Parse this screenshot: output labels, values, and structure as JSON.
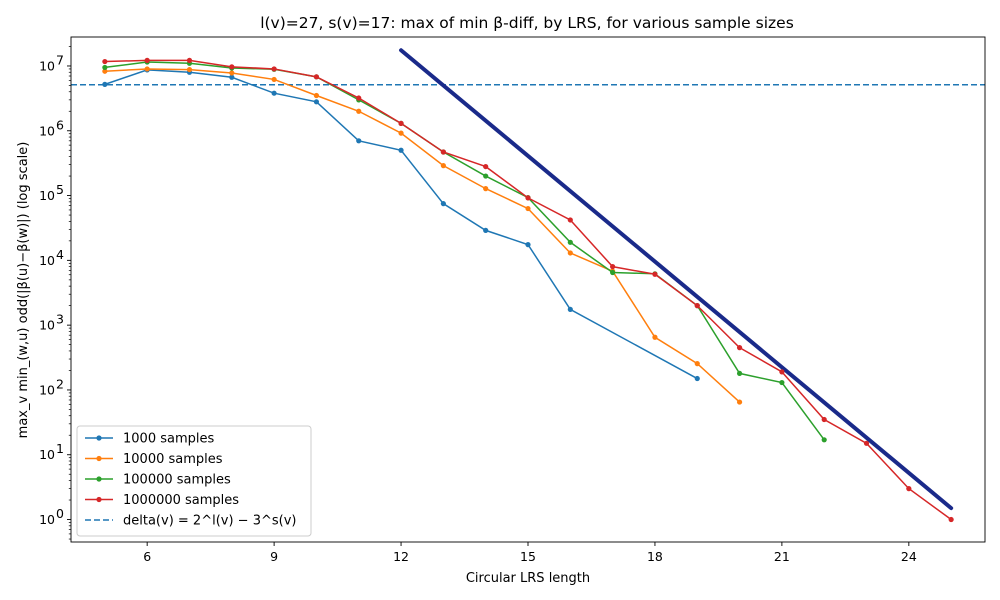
{
  "chart_data": {
    "type": "line",
    "title": "l(v)=27, s(v)=17: max of min β-diff, by LRS, for various sample sizes",
    "xlabel": "Circular LRS length",
    "ylabel": "max_v min_(w,u) odd(|β(u)−β(w)|)  (log scale)",
    "xlim": [
      4.2,
      25.8
    ],
    "ylim": [
      0.45,
      28000000
    ],
    "yscale": "log",
    "x_ticks": [
      6,
      9,
      12,
      15,
      18,
      21,
      24
    ],
    "x_tick_labels": [
      "6",
      "9",
      "12",
      "15",
      "18",
      "21",
      "24"
    ],
    "y_ticks": [
      1,
      10,
      100,
      1000,
      10000,
      100000,
      1000000,
      10000000
    ],
    "y_tick_bases": [
      "10",
      "10",
      "10",
      "10",
      "10",
      "10",
      "10",
      "10"
    ],
    "y_tick_exps": [
      "0",
      "1",
      "2",
      "3",
      "4",
      "5",
      "6",
      "7"
    ],
    "legend_position": "lower-left",
    "series": [
      {
        "name": "1000 samples",
        "color": "#1f77b4",
        "x": [
          5,
          6,
          7,
          8,
          9,
          10,
          11,
          12,
          13,
          14,
          15,
          16,
          19
        ],
        "y": [
          5200000,
          8700000,
          8000000,
          6700000,
          3800000,
          2800000,
          700000,
          500000,
          75000,
          29000,
          17500,
          1750,
          150
        ]
      },
      {
        "name": "10000 samples",
        "color": "#ff7f0e",
        "x": [
          5,
          6,
          7,
          8,
          9,
          10,
          11,
          12,
          13,
          14,
          15,
          16,
          17,
          18,
          19,
          20
        ],
        "y": [
          8300000,
          9000000,
          8800000,
          7800000,
          6200000,
          3500000,
          2000000,
          920000,
          290000,
          128000,
          63000,
          13000,
          6800,
          650,
          255,
          65
        ]
      },
      {
        "name": "100000 samples",
        "color": "#2ca02c",
        "x": [
          5,
          6,
          7,
          8,
          9,
          10,
          11,
          12,
          13,
          14,
          15,
          16,
          17,
          18,
          19,
          20,
          21,
          22
        ],
        "y": [
          9500000,
          11500000,
          11000000,
          9300000,
          8900000,
          6800000,
          3000000,
          1300000,
          470000,
          200000,
          93000,
          19000,
          6500,
          6200,
          2000,
          180,
          130,
          17
        ]
      },
      {
        "name": "1000000 samples",
        "color": "#d62728",
        "x": [
          5,
          6,
          7,
          8,
          9,
          10,
          11,
          12,
          13,
          14,
          15,
          16,
          17,
          18,
          19,
          20,
          21,
          22,
          23,
          24,
          25
        ],
        "y": [
          11700000,
          12200000,
          12200000,
          9700000,
          9000000,
          6800000,
          3200000,
          1300000,
          470000,
          280000,
          92000,
          42000,
          8000,
          6100,
          2000,
          450,
          190,
          35,
          15,
          3,
          1
        ]
      }
    ],
    "reference_line": {
      "name": "delta(v) = 2^l(v) − 3^s(v)",
      "color": "#1f77b4",
      "y": 5137520
    },
    "bound_line": {
      "color": "#1a2a8a",
      "x": [
        12,
        25
      ],
      "y": [
        17500000,
        1.5
      ]
    }
  }
}
